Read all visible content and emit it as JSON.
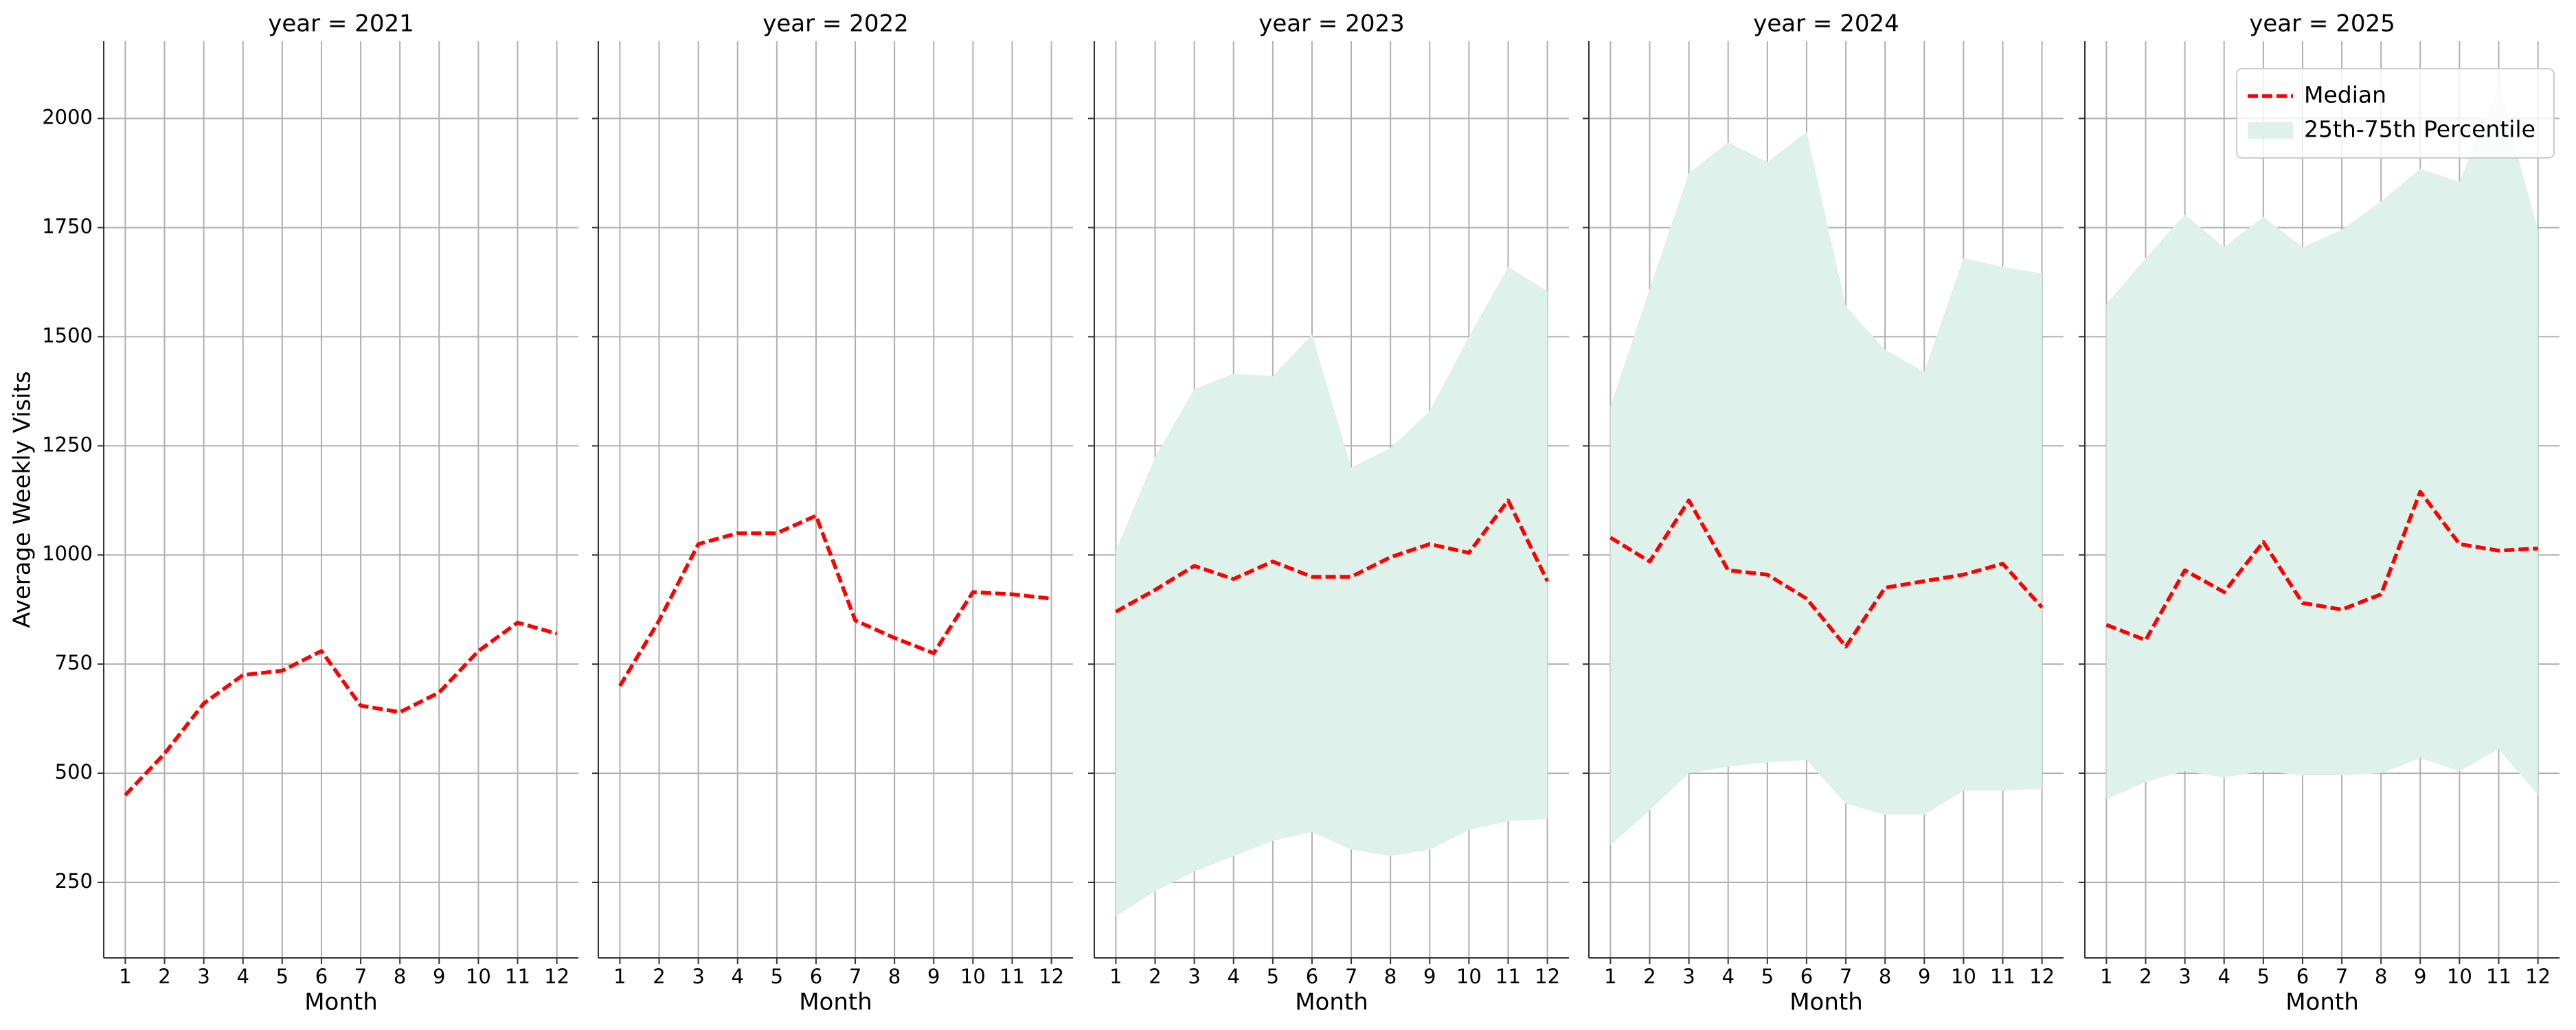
{
  "chart_data": [
    {
      "type": "line",
      "title": "year = 2021",
      "xlabel": "Month",
      "ylabel": "Average Weekly Visits",
      "x": [
        1,
        2,
        3,
        4,
        5,
        6,
        7,
        8,
        9,
        10,
        11,
        12
      ],
      "xlim": [
        0.45,
        12.55
      ],
      "xticks": [
        1,
        2,
        3,
        4,
        5,
        6,
        7,
        8,
        9,
        10,
        11,
        12
      ],
      "ylim": [
        77,
        2177
      ],
      "yticks": [
        250,
        500,
        750,
        1000,
        1250,
        1500,
        1750,
        2000
      ],
      "grid": true,
      "series": [
        {
          "color": "#ff0000",
          "values": [
            450,
            545,
            660,
            725,
            735,
            780,
            655,
            640,
            685,
            780,
            845,
            820
          ]
        }
      ]
    },
    {
      "type": "line",
      "title": "year = 2022",
      "xlabel": "Month",
      "x": [
        1,
        2,
        3,
        4,
        5,
        6,
        7,
        8,
        9,
        10,
        11,
        12
      ],
      "xlim": [
        0.45,
        12.55
      ],
      "xticks": [
        1,
        2,
        3,
        4,
        5,
        6,
        7,
        8,
        9,
        10,
        11,
        12
      ],
      "ylim": [
        77,
        2177
      ],
      "yticks": [
        250,
        500,
        750,
        1000,
        1250,
        1500,
        1750,
        2000
      ],
      "grid": true,
      "series": [
        {
          "color": "#ff0000",
          "values": [
            700,
            850,
            1025,
            1050,
            1050,
            1090,
            850,
            810,
            775,
            915,
            910,
            900
          ]
        }
      ]
    },
    {
      "type": "line",
      "title": "year = 2023",
      "xlabel": "Month",
      "x": [
        1,
        2,
        3,
        4,
        5,
        6,
        7,
        8,
        9,
        10,
        11,
        12
      ],
      "xlim": [
        0.45,
        12.55
      ],
      "xticks": [
        1,
        2,
        3,
        4,
        5,
        6,
        7,
        8,
        9,
        10,
        11,
        12
      ],
      "ylim": [
        77,
        2177
      ],
      "yticks": [
        250,
        500,
        750,
        1000,
        1250,
        1500,
        1750,
        2000
      ],
      "grid": true,
      "series": [
        {
          "color": "#ff0000",
          "values": [
            870,
            920,
            975,
            945,
            985,
            950,
            950,
            995,
            1025,
            1005,
            1125,
            940
          ]
        },
        {
          "color": "#dff1eb",
          "lower": [
            172,
            230,
            275,
            310,
            345,
            365,
            325,
            310,
            325,
            370,
            390,
            395
          ],
          "upper": [
            1010,
            1225,
            1380,
            1415,
            1410,
            1505,
            1200,
            1245,
            1330,
            1500,
            1660,
            1605
          ]
        }
      ]
    },
    {
      "type": "line",
      "title": "year = 2024",
      "xlabel": "Month",
      "x": [
        1,
        2,
        3,
        4,
        5,
        6,
        7,
        8,
        9,
        10,
        11,
        12
      ],
      "xlim": [
        0.45,
        12.55
      ],
      "xticks": [
        1,
        2,
        3,
        4,
        5,
        6,
        7,
        8,
        9,
        10,
        11,
        12
      ],
      "ylim": [
        77,
        2177
      ],
      "yticks": [
        250,
        500,
        750,
        1000,
        1250,
        1500,
        1750,
        2000
      ],
      "grid": true,
      "series": [
        {
          "color": "#ff0000",
          "values": [
            1040,
            985,
            1125,
            965,
            955,
            900,
            790,
            925,
            940,
            955,
            980,
            880
          ]
        },
        {
          "color": "#dff1eb",
          "lower": [
            335,
            415,
            500,
            515,
            525,
            530,
            430,
            405,
            405,
            460,
            460,
            465
          ],
          "upper": [
            1340,
            1610,
            1875,
            1945,
            1900,
            1970,
            1570,
            1470,
            1420,
            1680,
            1660,
            1645
          ]
        }
      ]
    },
    {
      "type": "line",
      "title": "year = 2025",
      "xlabel": "Month",
      "x": [
        1,
        2,
        3,
        4,
        5,
        6,
        7,
        8,
        9,
        10,
        11,
        12
      ],
      "xlim": [
        0.45,
        12.55
      ],
      "xticks": [
        1,
        2,
        3,
        4,
        5,
        6,
        7,
        8,
        9,
        10,
        11,
        12
      ],
      "ylim": [
        77,
        2177
      ],
      "yticks": [
        250,
        500,
        750,
        1000,
        1250,
        1500,
        1750,
        2000
      ],
      "grid": true,
      "legend": "upper right",
      "series": [
        {
          "name": "Median",
          "color": "#ff0000",
          "values": [
            840,
            805,
            965,
            915,
            1030,
            890,
            875,
            910,
            1145,
            1025,
            1010,
            1015
          ]
        },
        {
          "name": "25th-75th Percentile",
          "color": "#dff1eb",
          "lower": [
            440,
            480,
            505,
            490,
            505,
            495,
            495,
            500,
            535,
            505,
            555,
            450
          ],
          "upper": [
            1575,
            1680,
            1780,
            1705,
            1775,
            1705,
            1745,
            1810,
            1885,
            1855,
            2075,
            1745
          ]
        }
      ]
    }
  ]
}
